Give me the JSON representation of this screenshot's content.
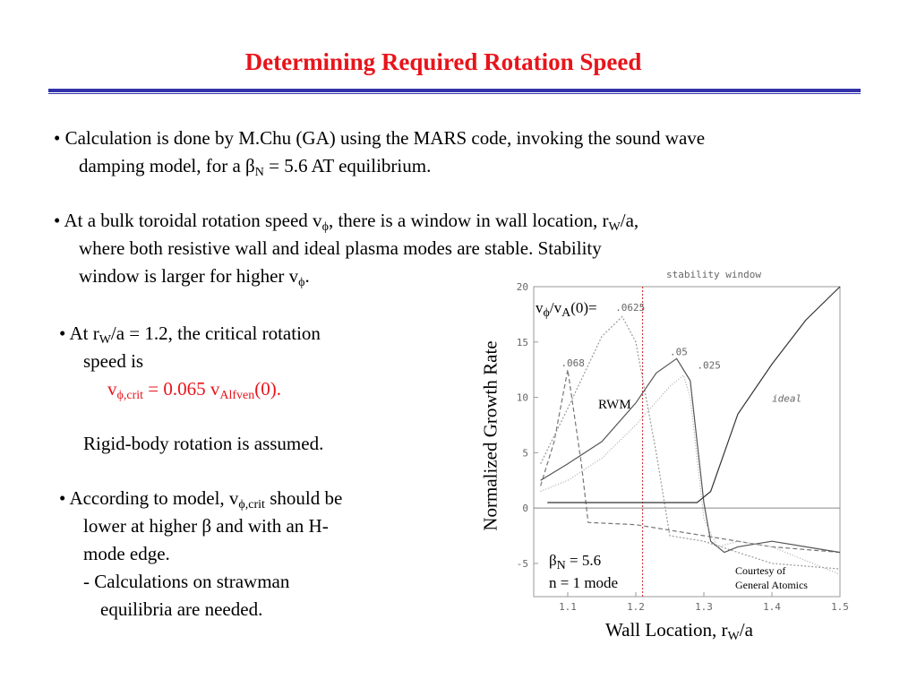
{
  "title": "Determining Required Rotation Speed",
  "bullets": {
    "b1_line1": "•  Calculation is done by M.Chu (GA) using the MARS code, invoking the sound wave",
    "b1_line2_pre": "damping model, for a β",
    "b1_line2_sub": "N",
    "b1_line2_post": " = 5.6 AT equilibrium.",
    "b2_line1_pre": "•  At a bulk toroidal rotation speed v",
    "b2_line1_sub": "ϕ",
    "b2_line1_mid": ", there is a window in wall location, r",
    "b2_line1_sub2": "W",
    "b2_line1_post": "/a,",
    "b2_line2": "where both resistive wall and ideal plasma modes are stable.  Stability",
    "b2_line3_pre": "window is larger for higher v",
    "b2_line3_sub": "ϕ",
    "b2_line3_post": ".",
    "b3_line1_pre": "•  At r",
    "b3_line1_sub": "W",
    "b3_line1_post": "/a = 1.2, the critical rotation",
    "b3_line2": "speed is",
    "b3_line3_pre": "v",
    "b3_line3_sub": "ϕ,crit",
    "b3_line3_mid": " = 0.065 v",
    "b3_line3_sub2": "Alfven",
    "b3_line3_post": "(0).",
    "b3_line4": "Rigid-body rotation is assumed.",
    "b4_line1_pre": "•  According to model, v",
    "b4_line1_sub": "ϕ,crit",
    "b4_line1_post": " should be",
    "b4_line2": "lower at higher β and with an H-",
    "b4_line3": "mode edge.",
    "b4_line4": "- Calculations on strawman",
    "b4_line5": "equilibria are needed."
  },
  "figure": {
    "ylabel": "Normalized Growth Rate",
    "xlabel_pre": "Wall Location, r",
    "xlabel_sub": "W",
    "xlabel_post": "/a",
    "stability_window": "stability window",
    "vphi_pre": "v",
    "vphi_sub": "ϕ",
    "vphi_mid": "/v",
    "vphi_sub2": "A",
    "vphi_post": "(0)=",
    "rwm": "RWM",
    "ideal": "ideal",
    "beta_pre": "β",
    "beta_sub": "N",
    "beta_post": " = 5.6",
    "mode": "n = 1 mode",
    "courtesy1": "Courtesy of",
    "courtesy2": "General Atomics",
    "curve_labels": [
      ".068",
      ".0625",
      ".05",
      ".025"
    ]
  },
  "chart_data": {
    "type": "line",
    "title": "stability window",
    "xlabel": "Wall Location, rW/a",
    "ylabel": "Normalized Growth Rate",
    "xlim": [
      1.05,
      1.5
    ],
    "ylim": [
      -8,
      20
    ],
    "x_ticks": [
      "1.1",
      "1.2",
      "1.3",
      "1.4",
      "1.5"
    ],
    "y_ticks": [
      "20",
      "15",
      "10",
      "5",
      "0",
      "-5"
    ],
    "critical_line_x": 1.21,
    "series": [
      {
        "name": ".068",
        "x": [
          1.06,
          1.08,
          1.1,
          1.12,
          1.13,
          1.2,
          1.3,
          1.4,
          1.5
        ],
        "y": [
          2.0,
          6.0,
          12.5,
          4.0,
          -1.3,
          -1.5,
          -2.5,
          -3.5,
          -4.0
        ]
      },
      {
        "name": ".0625",
        "x": [
          1.06,
          1.1,
          1.15,
          1.18,
          1.2,
          1.23,
          1.25,
          1.3,
          1.35,
          1.4,
          1.5
        ],
        "y": [
          4.0,
          9.0,
          15.5,
          17.3,
          15.0,
          5.0,
          -2.5,
          -3.0,
          -4.0,
          -5.0,
          -5.5
        ]
      },
      {
        "name": ".05",
        "x": [
          1.06,
          1.1,
          1.15,
          1.2,
          1.23,
          1.26,
          1.28,
          1.3,
          1.31,
          1.33,
          1.35,
          1.4,
          1.5
        ],
        "y": [
          2.5,
          4.0,
          6.0,
          9.5,
          12.2,
          13.5,
          11.5,
          0.5,
          -3.0,
          -4.0,
          -3.5,
          -3.0,
          -4.0
        ]
      },
      {
        "name": ".025",
        "x": [
          1.06,
          1.1,
          1.15,
          1.2,
          1.25,
          1.27,
          1.28,
          1.3,
          1.32,
          1.35,
          1.4,
          1.5
        ],
        "y": [
          1.5,
          2.5,
          4.5,
          7.5,
          11.0,
          12.0,
          10.0,
          -1.0,
          -3.5,
          -3.0,
          -3.5,
          -6.0
        ]
      },
      {
        "name": "ideal",
        "x": [
          1.07,
          1.2,
          1.27,
          1.29,
          1.31,
          1.35,
          1.4,
          1.45,
          1.5
        ],
        "y": [
          0.5,
          0.5,
          0.5,
          0.5,
          1.5,
          8.5,
          13.0,
          17.0,
          20.0
        ]
      }
    ]
  }
}
